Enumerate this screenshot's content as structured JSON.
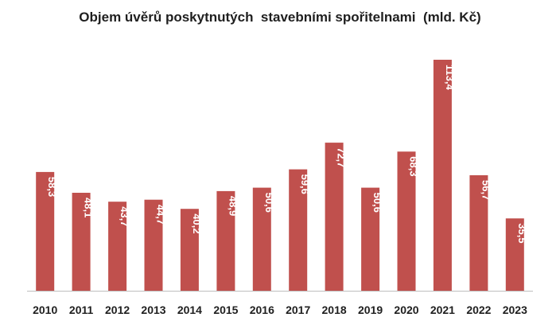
{
  "chart_data": {
    "type": "bar",
    "title": "Objem úvěrů poskytnutých  stavebními spořitelnami  (mld. Kč)",
    "xlabel": "",
    "ylabel": "",
    "categories": [
      "2010",
      "2011",
      "2012",
      "2013",
      "2014",
      "2015",
      "2016",
      "2017",
      "2018",
      "2019",
      "2020",
      "2021",
      "2022",
      "2023"
    ],
    "values": [
      58.3,
      48.1,
      43.7,
      44.7,
      40.2,
      48.9,
      50.6,
      59.6,
      72.7,
      50.6,
      68.3,
      113.4,
      56.7,
      35.5
    ],
    "data_labels": [
      "58,3",
      "48,1",
      "43,7",
      "44,7",
      "40,2",
      "48,9",
      "50,6",
      "59,6",
      "72,7",
      "50,6",
      "68,3",
      "113,4",
      "56,7",
      "35,5"
    ],
    "ylim": [
      0,
      113.4
    ],
    "grid": false,
    "legend": "none",
    "bar_color": "#c0504d",
    "axis_color": "#bfbfbf"
  }
}
